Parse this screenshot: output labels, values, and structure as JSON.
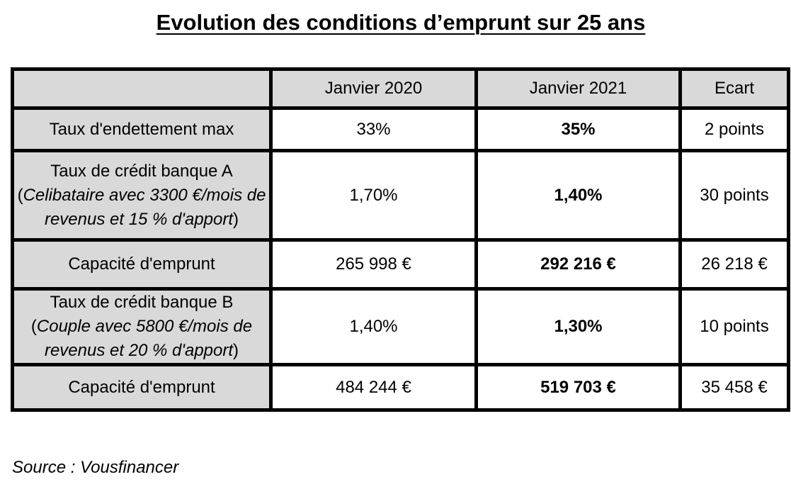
{
  "title": "Evolution des conditions d’emprunt sur 25 ans",
  "table": {
    "headers": [
      "",
      "Janvier 2020",
      "Janvier 2021",
      "Ecart"
    ],
    "rows": [
      {
        "label": "Taux d'endettement max",
        "jan2020": "33%",
        "jan2021": "35%",
        "ecart": "2 points"
      },
      {
        "label_line1": "Taux de crédit banque A",
        "label_detail_open": "(",
        "label_detail_italic": "Celibataire avec 3300 €/mois de revenus et 15 % d'apport",
        "label_detail_close": ")",
        "jan2020": "1,70%",
        "jan2021": "1,40%",
        "ecart": "30 points"
      },
      {
        "label": "Capacité d'emprunt",
        "jan2020": "265 998 €",
        "jan2021": "292 216 €",
        "ecart": "26 218 €"
      },
      {
        "label_line1": "Taux de crédit banque B",
        "label_detail_open": "(",
        "label_detail_italic": "Couple avec 5800 €/mois de revenus et 20 % d'apport",
        "label_detail_close": ")",
        "jan2020": "1,40%",
        "jan2021": "1,30%",
        "ecart": "10 points"
      },
      {
        "label": "Capacité d'emprunt",
        "jan2020": "484 244 €",
        "jan2021": "519 703 €",
        "ecart": "35 458 €"
      }
    ]
  },
  "source": "Source : Vousfinancer"
}
